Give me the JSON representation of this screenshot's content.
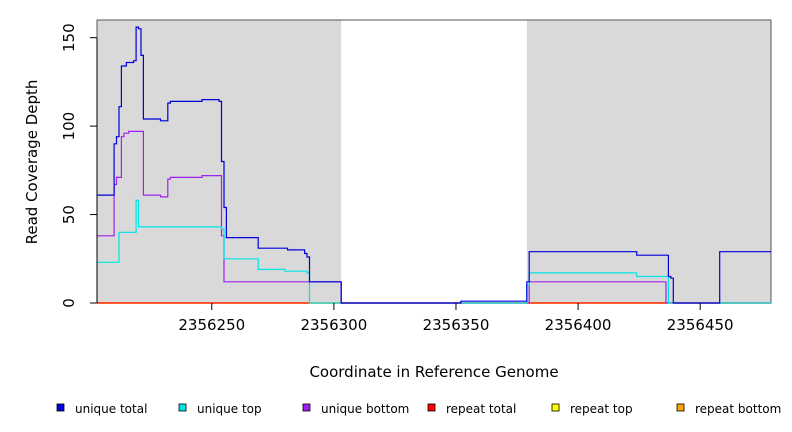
{
  "chart_data": {
    "type": "line",
    "title": "",
    "xlabel": "Coordinate in Reference Genome",
    "ylabel": "Read Coverage Depth",
    "xlim": [
      2356203,
      2356479
    ],
    "ylim": [
      0,
      160
    ],
    "x_ticks": [
      2356250,
      2356300,
      2356350,
      2356400,
      2356450
    ],
    "x_tick_labels": [
      "2356250",
      "2356300",
      "2356350",
      "2356400",
      "2356450"
    ],
    "y_ticks": [
      0,
      50,
      100,
      150
    ],
    "y_tick_labels": [
      "0",
      "50",
      "100",
      "150"
    ],
    "shaded_regions": [
      [
        2356203,
        2356303
      ],
      [
        2356379,
        2356479
      ]
    ],
    "shade_color": "#d9d9d9",
    "legend_position": "bottom",
    "series": [
      {
        "name": "unique total",
        "color": "#0000dd",
        "steps": [
          [
            2356203,
            61
          ],
          [
            2356210,
            90
          ],
          [
            2356211,
            94
          ],
          [
            2356212,
            111
          ],
          [
            2356213,
            134
          ],
          [
            2356215,
            136
          ],
          [
            2356218,
            137
          ],
          [
            2356219,
            156
          ],
          [
            2356220,
            155
          ],
          [
            2356221,
            140
          ],
          [
            2356222,
            104
          ],
          [
            2356229,
            103
          ],
          [
            2356232,
            113
          ],
          [
            2356233,
            114
          ],
          [
            2356246,
            115
          ],
          [
            2356253,
            114
          ],
          [
            2356254,
            80
          ],
          [
            2356255,
            54
          ],
          [
            2356256,
            37
          ],
          [
            2356269,
            31
          ],
          [
            2356281,
            30
          ],
          [
            2356288,
            28
          ],
          [
            2356289,
            26
          ],
          [
            2356290,
            12
          ],
          [
            2356303,
            0
          ],
          [
            2356352,
            1
          ],
          [
            2356379,
            12
          ],
          [
            2356380,
            29
          ],
          [
            2356424,
            27
          ],
          [
            2356437,
            15
          ],
          [
            2356438,
            14
          ],
          [
            2356439,
            0
          ],
          [
            2356458,
            29
          ],
          [
            2356479,
            29
          ]
        ]
      },
      {
        "name": "unique top",
        "color": "#00e5e5",
        "steps": [
          [
            2356203,
            23
          ],
          [
            2356212,
            40
          ],
          [
            2356219,
            58
          ],
          [
            2356220,
            43
          ],
          [
            2356254,
            42
          ],
          [
            2356255,
            25
          ],
          [
            2356269,
            19
          ],
          [
            2356280,
            18
          ],
          [
            2356289,
            17
          ],
          [
            2356290,
            0
          ],
          [
            2356379,
            10
          ],
          [
            2356380,
            17
          ],
          [
            2356424,
            15
          ],
          [
            2356437,
            0
          ],
          [
            2356479,
            0
          ]
        ]
      },
      {
        "name": "unique bottom",
        "color": "#a020f0",
        "steps": [
          [
            2356203,
            38
          ],
          [
            2356210,
            67
          ],
          [
            2356211,
            71
          ],
          [
            2356213,
            94
          ],
          [
            2356214,
            96
          ],
          [
            2356216,
            97
          ],
          [
            2356222,
            61
          ],
          [
            2356229,
            60
          ],
          [
            2356232,
            70
          ],
          [
            2356233,
            71
          ],
          [
            2356246,
            72
          ],
          [
            2356254,
            38
          ],
          [
            2356255,
            12
          ],
          [
            2356303,
            0
          ],
          [
            2356380,
            12
          ],
          [
            2356436,
            0
          ],
          [
            2356479,
            0
          ]
        ]
      },
      {
        "name": "repeat total",
        "color": "#ff0000",
        "steps": [
          [
            2356203,
            0
          ],
          [
            2356479,
            0
          ]
        ]
      },
      {
        "name": "repeat top",
        "color": "#ffff00",
        "steps": [
          [
            2356203,
            0
          ],
          [
            2356479,
            0
          ]
        ]
      },
      {
        "name": "repeat bottom",
        "color": "#ffa500",
        "steps": [
          [
            2356203,
            0
          ],
          [
            2356479,
            0
          ]
        ]
      }
    ]
  }
}
